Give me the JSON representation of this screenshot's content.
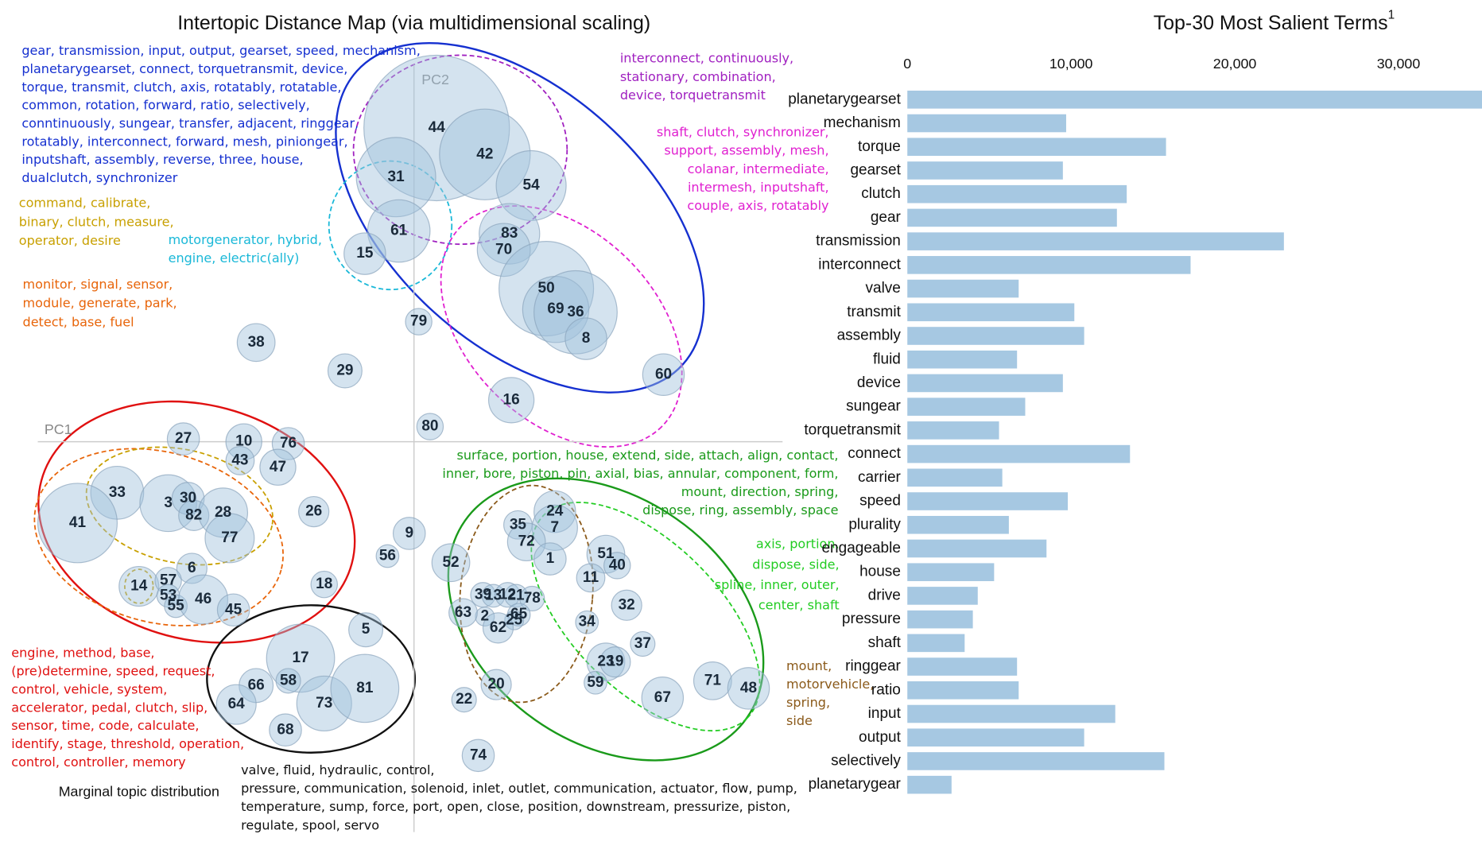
{
  "chart_data": [
    {
      "type": "scatter",
      "title": "Intertopic Distance Map (via multidimensional scaling)",
      "x_label": "PC1",
      "y_label": "PC2",
      "size_label": "Marginal topic distribution",
      "xlim": [
        -438,
        392
      ],
      "ylim": [
        -433,
        427
      ],
      "color": "#9fc0dc",
      "labels": [
        "44",
        "42",
        "54",
        "31",
        "61",
        "15",
        "83",
        "70",
        "50",
        "69",
        "36",
        "8",
        "79",
        "38",
        "29",
        "60",
        "16",
        "80",
        "27",
        "10",
        "76",
        "43",
        "47",
        "33",
        "3",
        "30",
        "82",
        "28",
        "77",
        "41",
        "26",
        "9",
        "56",
        "6",
        "14",
        "57",
        "53",
        "55",
        "46",
        "45",
        "18",
        "5",
        "17",
        "58",
        "66",
        "64",
        "73",
        "81",
        "68",
        "24",
        "35",
        "7",
        "72",
        "1",
        "51",
        "40",
        "11",
        "52",
        "32",
        "39",
        "13",
        "12",
        "21",
        "78",
        "2",
        "65",
        "25",
        "63",
        "62",
        "34",
        "37",
        "23",
        "19",
        "59",
        "71",
        "48",
        "67",
        "20",
        "22",
        "74"
      ],
      "x": [
        24,
        75,
        124,
        -19,
        -16,
        -52,
        101,
        95,
        140,
        150,
        171,
        182,
        5,
        -167,
        -73,
        264,
        103,
        17,
        -244,
        -180,
        -133,
        -184,
        -144,
        -314,
        -260,
        -239,
        -233,
        -202,
        -195,
        -356,
        -106,
        -5,
        -28,
        -235,
        -291,
        -260,
        -260,
        -252,
        -223,
        -191,
        -95,
        -51,
        -120,
        -133,
        -167,
        -188,
        -95,
        -52,
        -136,
        149,
        110,
        149,
        119,
        144,
        203,
        215,
        187,
        39,
        225,
        73,
        84,
        99,
        108,
        125,
        75,
        111,
        106,
        52,
        89,
        183,
        242,
        203,
        213,
        192,
        316,
        354,
        263,
        87,
        53,
        68
      ],
      "y": [
        332,
        304,
        271,
        280,
        223,
        199,
        220,
        203,
        162,
        140,
        137,
        109,
        127,
        105,
        75,
        71,
        44,
        16,
        3,
        0,
        -2,
        -20,
        -27,
        -54,
        -65,
        -60,
        -78,
        -75,
        -102,
        -86,
        -74,
        -97,
        -121,
        -134,
        -153,
        -147,
        -163,
        -174,
        -167,
        -178,
        -151,
        -199,
        -229,
        -253,
        -258,
        -278,
        -277,
        -261,
        -305,
        -74,
        -88,
        -91,
        -106,
        -124,
        -119,
        -131,
        -144,
        -128,
        -173,
        -162,
        -163,
        -162,
        -163,
        -166,
        -185,
        -183,
        -189,
        -181,
        -197,
        -191,
        -214,
        -233,
        -233,
        -255,
        -253,
        -261,
        -271,
        -257,
        -273,
        -332
      ],
      "sizes": [
        77,
        48,
        37,
        42,
        33,
        22,
        32,
        28,
        50,
        35,
        44,
        22,
        14,
        20,
        18,
        22,
        24,
        14,
        17,
        19,
        17,
        15,
        19,
        28,
        30,
        17,
        16,
        26,
        26,
        42,
        16,
        17,
        12,
        16,
        21,
        14,
        12,
        12,
        26,
        17,
        14,
        18,
        36,
        13,
        18,
        21,
        29,
        36,
        17,
        22,
        15,
        24,
        20,
        17,
        20,
        14,
        15,
        20,
        16,
        13,
        12,
        13,
        12,
        13,
        10,
        12,
        10,
        15,
        16,
        12,
        13,
        20,
        16,
        12,
        20,
        22,
        22,
        16,
        13,
        17
      ],
      "annotations": [
        {
          "color": "#1530d0",
          "lines": [
            "gear, transmission, input, output, gearset, speed, mechanism,",
            "planetarygearset, connect, torquetransmit, device,",
            "torque, transmit, clutch, axis, rotatably, rotatable,",
            "common, rotation, forward, ratio, selectively,",
            "conntinuously, sungear, transfer, adjacent, ringgear,",
            "rotatably, interconnect, forward, mesh, piniongear,",
            "inputshaft, assembly, reverse, three, house,",
            "dualclutch, synchronizer"
          ]
        },
        {
          "color": "#c8a000",
          "lines": [
            "command, calibrate,",
            "binary, clutch, measure,",
            "operator, desire"
          ]
        },
        {
          "color": "#1ab8d8",
          "lines": [
            "motorgenerator, hybrid,",
            "engine, electric(ally)"
          ]
        },
        {
          "color": "#e8650a",
          "lines": [
            "monitor, signal, sensor,",
            "module, generate, park,",
            "detect, base, fuel"
          ]
        },
        {
          "color": "#a020c0",
          "lines": [
            "interconnect, continuously,",
            "stationary, combination,",
            "device, torquetransmit"
          ]
        },
        {
          "color": "#e020d0",
          "lines": [
            "shaft, clutch, synchronizer,",
            "support, assembly, mesh,",
            "colanar, intermediate,",
            "intermesh, inputshaft,",
            "couple, axis, rotatably"
          ]
        },
        {
          "color": "#e01010",
          "lines": [
            "engine, method, base,",
            "(pre)determine, speed, request,",
            "control, vehicle, system,",
            "accelerator, pedal, clutch, slip,",
            "sensor, time, code, calculate,",
            "identify, stage, threshold, operation,",
            "control, controller, memory"
          ]
        },
        {
          "color": "#111111",
          "lines": [
            "valve, fluid, hydraulic, control,",
            "pressure, communication, solenoid, inlet, outlet, communication, actuator, flow, pump,",
            "temperature, sump, force, port, open, close, position, downstream, pressurize, piston,",
            "regulate, spool, servo"
          ]
        },
        {
          "color": "#1a9a1a",
          "lines": [
            "surface, portion, house, extend, side, attach, align, contact,",
            "inner, bore, piston, pin, axial, bias, annular, component, form,",
            "mount, direction, spring,",
            "dispose, ring, assembly, space"
          ]
        },
        {
          "color": "#22cc22",
          "lines": [
            "axis, portion,",
            "dispose, side,",
            "spline, inner, outer,",
            "center, shaft"
          ]
        },
        {
          "color": "#8b5a1a",
          "lines": [
            "mount,",
            "motorvehicle,",
            "spring,",
            "side"
          ]
        }
      ]
    },
    {
      "type": "bar",
      "orientation": "horizontal",
      "title": "Top-30 Most Salient Terms",
      "title_note": "1",
      "color": "#a6c8e2",
      "xlim": [
        0,
        35100
      ],
      "xticks": [
        0,
        {
          "value": 10000,
          "label": "10,000"
        },
        {
          "value": 20000,
          "label": "20,000"
        },
        {
          "value": 30000,
          "label": "30,000"
        }
      ],
      "categories": [
        "planetarygearset",
        "mechanism",
        "torque",
        "gearset",
        "clutch",
        "gear",
        "transmission",
        "interconnect",
        "valve",
        "transmit",
        "assembly",
        "fluid",
        "device",
        "sungear",
        "torquetransmit",
        "connect",
        "carrier",
        "speed",
        "plurality",
        "engageable",
        "house",
        "drive",
        "pressure",
        "shaft",
        "ringgear",
        "ratio",
        "input",
        "output",
        "selectively",
        "planetarygear"
      ],
      "values": [
        36000,
        9700,
        15800,
        9500,
        13400,
        12800,
        23000,
        17300,
        6800,
        10200,
        10800,
        6700,
        9500,
        7200,
        5600,
        13600,
        5800,
        9800,
        6200,
        8500,
        5300,
        4300,
        4000,
        3500,
        6700,
        6800,
        12700,
        10800,
        15700,
        2700
      ]
    }
  ]
}
